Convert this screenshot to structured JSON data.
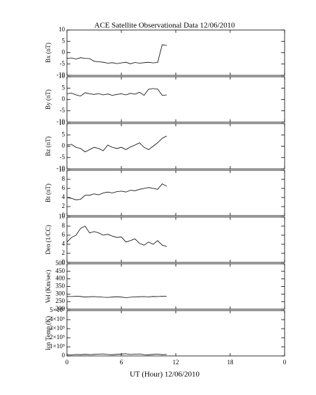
{
  "title": "ACE Satellite Observational Data   12/06/2010",
  "xlabel": "UT (Hour)   12/06/2010",
  "xlim": [
    0,
    24
  ],
  "xticks": [
    0,
    6,
    12,
    18,
    {
      "value": 24,
      "label": "0"
    }
  ],
  "chart_data": [
    {
      "type": "line",
      "ylabel": "Bx (nT)",
      "ylim": [
        -10,
        10
      ],
      "yticks": [
        -10,
        -5,
        0,
        5,
        10
      ],
      "color": "#000000",
      "x": [
        0,
        0.5,
        1,
        1.5,
        2,
        2.5,
        3,
        3.5,
        4,
        4.5,
        5,
        5.5,
        6,
        6.5,
        7,
        7.5,
        8,
        8.5,
        9,
        9.5,
        10,
        10.5,
        11
      ],
      "values": [
        -2.5,
        -2.3,
        -2.8,
        -2.2,
        -2.5,
        -2.6,
        -3.8,
        -4.0,
        -4.2,
        -4.6,
        -4.4,
        -4.8,
        -4.5,
        -4.2,
        -4.9,
        -4.3,
        -4.6,
        -4.4,
        -4.2,
        -4.5,
        -4.3,
        3.5,
        3.2
      ]
    },
    {
      "type": "line",
      "ylabel": "By (nT)",
      "ylim": [
        -10,
        10
      ],
      "yticks": [
        -10,
        -5,
        0,
        5,
        10
      ],
      "color": "#000000",
      "x": [
        0,
        0.5,
        1,
        1.5,
        2,
        2.5,
        3,
        3.5,
        4,
        4.5,
        5,
        5.5,
        6,
        6.5,
        7,
        7.5,
        8,
        8.5,
        9,
        9.5,
        10,
        10.5,
        11
      ],
      "values": [
        2.5,
        2.8,
        2.0,
        1.5,
        3.0,
        2.5,
        2.2,
        2.6,
        2.0,
        2.4,
        1.8,
        2.2,
        2.5,
        2.0,
        2.7,
        2.3,
        3.2,
        1.8,
        4.5,
        4.8,
        4.6,
        1.8,
        2.0
      ]
    },
    {
      "type": "line",
      "ylabel": "Bz (nT)",
      "ylim": [
        -10,
        10
      ],
      "yticks": [
        -10,
        -5,
        0,
        5,
        10
      ],
      "color": "#000000",
      "x": [
        0,
        0.5,
        1,
        1.5,
        2,
        2.5,
        3,
        3.5,
        4,
        4.5,
        5,
        5.5,
        6,
        6.5,
        7,
        7.5,
        8,
        8.5,
        9,
        9.5,
        10,
        10.5,
        11
      ],
      "values": [
        0.5,
        0.8,
        -0.5,
        -1.0,
        -2.5,
        -1.5,
        -0.5,
        -1.0,
        -2.0,
        0.5,
        -0.5,
        -1.0,
        -0.5,
        -1.5,
        -0.3,
        0.5,
        1.5,
        -0.5,
        -1.5,
        0.0,
        1.5,
        3.5,
        4.5
      ]
    },
    {
      "type": "line",
      "ylabel": "Bt (nT)",
      "ylim": [
        0,
        10
      ],
      "yticks": [
        0,
        2,
        4,
        6,
        8,
        10
      ],
      "color": "#000000",
      "x": [
        0,
        0.5,
        1,
        1.5,
        2,
        2.5,
        3,
        3.5,
        4,
        4.5,
        5,
        5.5,
        6,
        6.5,
        7,
        7.5,
        8,
        8.5,
        9,
        9.5,
        10,
        10.5,
        11
      ],
      "values": [
        4.0,
        3.8,
        3.5,
        3.6,
        4.5,
        4.5,
        4.8,
        4.6,
        5.0,
        5.2,
        5.0,
        5.3,
        5.4,
        5.2,
        5.6,
        5.5,
        5.8,
        6.0,
        6.2,
        6.0,
        5.8,
        7.0,
        6.5
      ]
    },
    {
      "type": "line",
      "ylabel": "Den (1/CC)",
      "ylim": [
        0,
        10
      ],
      "yticks": [
        0,
        2,
        4,
        6,
        8,
        10
      ],
      "color": "#000000",
      "x": [
        0,
        0.5,
        1,
        1.5,
        2,
        2.5,
        3,
        3.5,
        4,
        4.5,
        5,
        5.5,
        6,
        6.5,
        7,
        7.5,
        8,
        8.5,
        9,
        9.5,
        10,
        10.5,
        11
      ],
      "values": [
        4.5,
        5.5,
        6.0,
        7.5,
        8.0,
        6.5,
        6.8,
        6.5,
        6.0,
        6.2,
        5.8,
        5.5,
        5.6,
        4.5,
        4.8,
        5.2,
        4.2,
        3.8,
        4.5,
        4.0,
        4.8,
        3.8,
        3.5
      ]
    },
    {
      "type": "line",
      "ylabel": "Vel (Km/sec)",
      "ylim": [
        200,
        500
      ],
      "yticks": [
        200,
        250,
        300,
        350,
        400,
        450,
        500
      ],
      "color": "#000000",
      "x": [
        0,
        0.5,
        1,
        1.5,
        2,
        2.5,
        3,
        3.5,
        4,
        4.5,
        5,
        5.5,
        6,
        6.5,
        7,
        7.5,
        8,
        8.5,
        9,
        9.5,
        10,
        10.5,
        11
      ],
      "values": [
        285,
        283,
        286,
        284,
        280,
        282,
        283,
        281,
        279,
        278,
        280,
        282,
        280,
        276,
        279,
        281,
        282,
        283,
        281,
        284,
        283,
        286,
        285
      ]
    },
    {
      "type": "line",
      "ylabel": "Ion Temp (K)",
      "ylim": [
        0,
        500000
      ],
      "yticks": [
        0,
        {
          "value": 100000,
          "label": "1×10⁵"
        },
        {
          "value": 200000,
          "label": "2×10⁵"
        },
        {
          "value": 300000,
          "label": "3×10⁵"
        },
        {
          "value": 400000,
          "label": "4×10⁵"
        },
        {
          "value": 500000,
          "label": "5×10⁵"
        }
      ],
      "color": "#000000",
      "x": [
        0,
        0.5,
        1,
        1.5,
        2,
        2.5,
        3,
        3.5,
        4,
        4.5,
        5,
        5.5,
        6,
        6.5,
        7,
        7.5,
        8,
        8.5,
        9,
        9.5,
        10,
        10.5,
        11
      ],
      "values": [
        15000,
        12000,
        16000,
        14000,
        18000,
        15000,
        17000,
        20000,
        22000,
        16000,
        14000,
        18000,
        21000,
        24000,
        16000,
        19000,
        22000,
        15000,
        13000,
        17000,
        20000,
        14000,
        16000
      ]
    }
  ]
}
